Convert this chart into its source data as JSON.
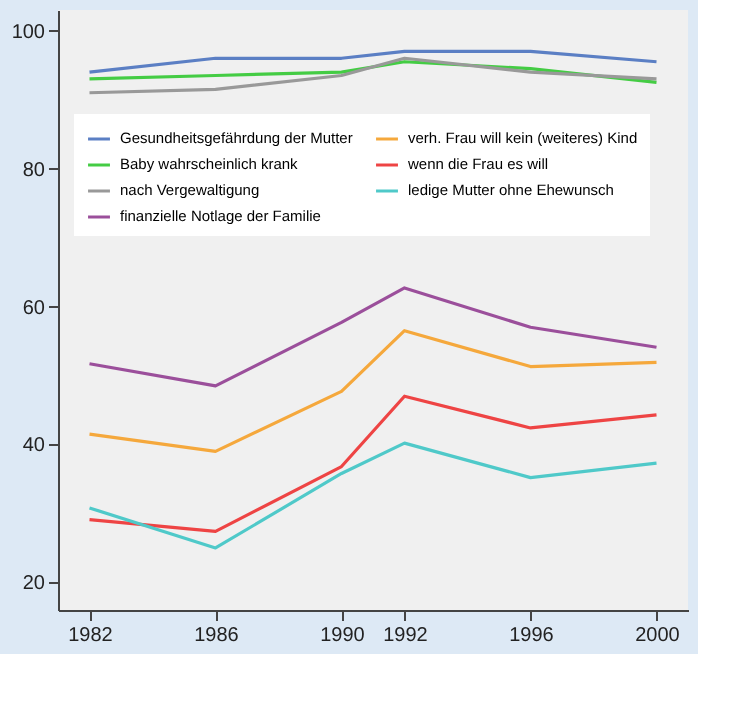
{
  "chart_data": {
    "type": "line",
    "x": [
      1982,
      1986,
      1990,
      1992,
      1996,
      2000
    ],
    "xlim": [
      1981,
      2001
    ],
    "xticks": [
      1982,
      1986,
      1990,
      1992,
      1996,
      2000
    ],
    "ylim": [
      16,
      103
    ],
    "yticks": [
      20,
      40,
      60,
      80,
      100
    ],
    "grid": false,
    "legend": "top left",
    "marker": "none",
    "line_style": "solid",
    "series": [
      {
        "name": "Gesundheitsgefährdung der Mutter",
        "color": "#5b7fc4",
        "values": [
          94,
          96,
          96,
          97,
          97,
          95.5
        ]
      },
      {
        "name": "Baby wahrscheinlich krank",
        "color": "#44cc44",
        "values": [
          93,
          93.5,
          94,
          95.5,
          94.5,
          92.5
        ]
      },
      {
        "name": "nach Vergewaltigung",
        "color": "#999999",
        "values": [
          91,
          91.5,
          93.5,
          96,
          94,
          93
        ]
      },
      {
        "name": "finanzielle Notlage der Familie",
        "color": "#9b4f9b",
        "values": [
          51.7,
          48.5,
          57.7,
          62.7,
          57,
          54.1
        ]
      },
      {
        "name": "verh. Frau will kein (weiteres) Kind",
        "color": "#f5a83c",
        "values": [
          41.5,
          39,
          47.7,
          56.5,
          51.3,
          51.9
        ]
      },
      {
        "name": "wenn die Frau es will",
        "color": "#ee4444",
        "values": [
          29.1,
          27.4,
          36.8,
          47,
          42.4,
          44.3
        ]
      },
      {
        "name": "ledige Mutter ohne Ehewunsch",
        "color": "#4fc9c9",
        "values": [
          30.8,
          25,
          35.8,
          40.2,
          35.2,
          37.3
        ]
      }
    ]
  }
}
